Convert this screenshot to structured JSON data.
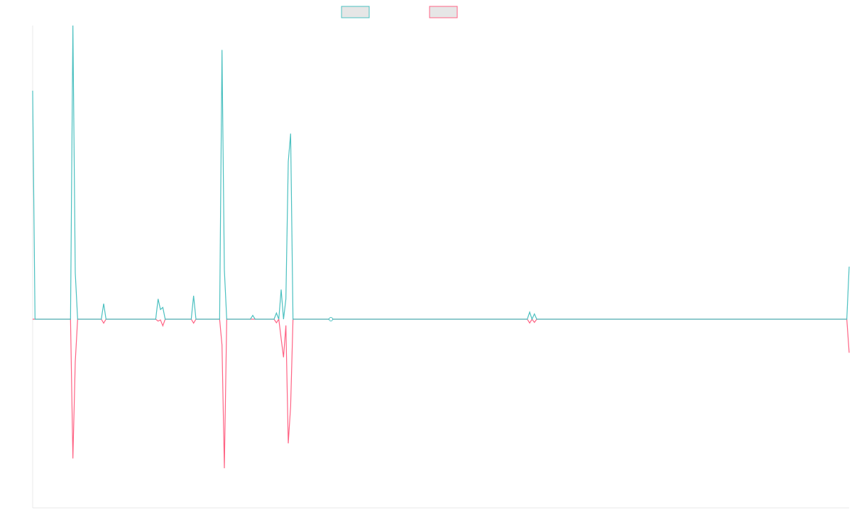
{
  "chart_data": {
    "type": "line",
    "x_count": 346,
    "legend_placement": "top-center",
    "grid": false,
    "ylim": [
      -1.0,
      1.0
    ],
    "series": [
      {
        "color": "#4bc0c0",
        "fill": "#e6e6e6",
        "points": [
          [
            0,
            0.778
          ],
          [
            1,
            0.0
          ],
          [
            16,
            0.0
          ],
          [
            17,
            1.0
          ],
          [
            18,
            0.158
          ],
          [
            19,
            0.0
          ],
          [
            29,
            0.0
          ],
          [
            30,
            0.053
          ],
          [
            31,
            0.0
          ],
          [
            52,
            0.0
          ],
          [
            53,
            0.069
          ],
          [
            54,
            0.033
          ],
          [
            55,
            0.04
          ],
          [
            56,
            0.0
          ],
          [
            67,
            0.0
          ],
          [
            68,
            0.08
          ],
          [
            69,
            0.0
          ],
          [
            79,
            0.0
          ],
          [
            80,
            0.917
          ],
          [
            81,
            0.168
          ],
          [
            82,
            0.0
          ],
          [
            92,
            0.0
          ],
          [
            93,
            0.013
          ],
          [
            94,
            0.0
          ],
          [
            102,
            0.0
          ],
          [
            103,
            0.021
          ],
          [
            104,
            0.0
          ],
          [
            105,
            0.101
          ],
          [
            106,
            0.0
          ],
          [
            107,
            0.069
          ],
          [
            108,
            0.536
          ],
          [
            109,
            0.632
          ],
          [
            110,
            0.0
          ],
          [
            125,
            0.0
          ],
          [
            126,
            0.004
          ],
          [
            127,
            0.0
          ],
          [
            209,
            0.0
          ],
          [
            210,
            0.024
          ],
          [
            211,
            0.0
          ],
          [
            212,
            0.018
          ],
          [
            213,
            0.0
          ],
          [
            344,
            0.0
          ],
          [
            345,
            0.179
          ]
        ]
      },
      {
        "color": "#ff6384",
        "fill": "#e6e6e6",
        "points": [
          [
            0,
            0.0
          ],
          [
            1,
            0.0
          ],
          [
            16,
            0.0
          ],
          [
            17,
            -0.738
          ],
          [
            18,
            -0.226
          ],
          [
            19,
            0.0
          ],
          [
            29,
            0.0
          ],
          [
            30,
            -0.021
          ],
          [
            31,
            0.0
          ],
          [
            52,
            0.0
          ],
          [
            53,
            -0.01
          ],
          [
            54,
            -0.004
          ],
          [
            55,
            -0.035
          ],
          [
            56,
            0.0
          ],
          [
            67,
            0.0
          ],
          [
            68,
            -0.021
          ],
          [
            69,
            0.0
          ],
          [
            79,
            0.0
          ],
          [
            80,
            -0.137
          ],
          [
            81,
            -0.79
          ],
          [
            82,
            0.0
          ],
          [
            92,
            0.0
          ],
          [
            93,
            0.0
          ],
          [
            102,
            0.0
          ],
          [
            103,
            -0.019
          ],
          [
            104,
            0.0
          ],
          [
            105,
            -0.103
          ],
          [
            106,
            -0.202
          ],
          [
            107,
            -0.033
          ],
          [
            108,
            -0.658
          ],
          [
            109,
            -0.462
          ],
          [
            110,
            0.0
          ],
          [
            125,
            0.0
          ],
          [
            126,
            -0.004
          ],
          [
            127,
            0.0
          ],
          [
            209,
            0.0
          ],
          [
            210,
            -0.02
          ],
          [
            211,
            0.0
          ],
          [
            212,
            -0.017
          ],
          [
            213,
            0.0
          ],
          [
            344,
            0.0
          ],
          [
            345,
            -0.178
          ]
        ]
      }
    ]
  }
}
